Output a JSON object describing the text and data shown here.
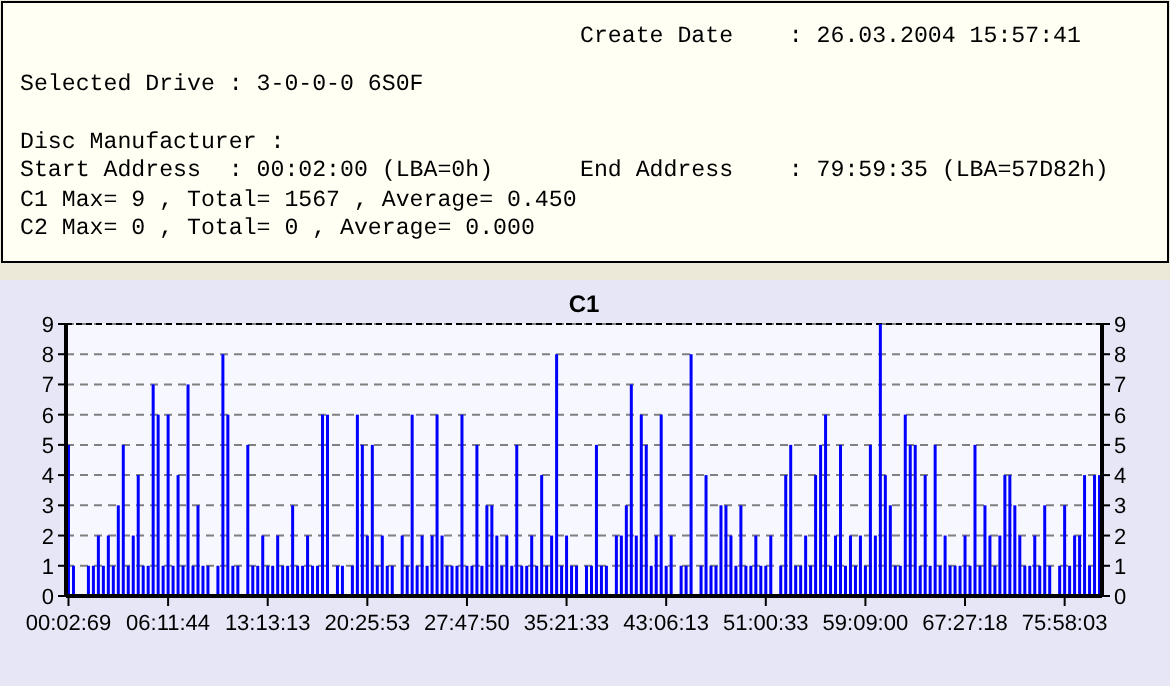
{
  "chart_data": [
    {
      "type": "other",
      "annotations": [
        "Create Date    : 26.03.2004 15:57:41",
        "Selected Drive : 3-0-0-0 6S0F",
        "Disc Manufacturer :",
        "Start Address  : 00:02:00 (LBA=0h)",
        "End Address    : 79:59:35 (LBA=57D82h)",
        "C1 Max= 9 , Total= 1567 , Average= 0.450",
        "C2 Max= 0 , Total= 0 , Average= 0.000"
      ]
    },
    {
      "type": "bar",
      "title": "C1",
      "color": "#0000ff",
      "grid": "y",
      "ylim": [
        0,
        9
      ],
      "yticks": [
        0,
        1,
        2,
        3,
        4,
        5,
        6,
        7,
        8,
        9
      ],
      "y2lim": [
        0,
        9
      ],
      "y2ticks": [
        0,
        1,
        2,
        3,
        4,
        5,
        6,
        7,
        8,
        9
      ],
      "categories": [
        "00:02:69",
        null,
        null,
        null,
        null,
        null,
        null,
        null,
        null,
        null,
        null,
        null,
        null,
        null,
        null,
        null,
        null,
        null,
        null,
        null,
        "06:11:44",
        null,
        null,
        null,
        null,
        null,
        null,
        null,
        null,
        null,
        null,
        null,
        null,
        null,
        null,
        null,
        null,
        null,
        null,
        null,
        "13:13:13",
        null,
        null,
        null,
        null,
        null,
        null,
        null,
        null,
        null,
        null,
        null,
        null,
        null,
        null,
        null,
        null,
        null,
        null,
        null,
        "20:25:53",
        null,
        null,
        null,
        null,
        null,
        null,
        null,
        null,
        null,
        null,
        null,
        null,
        null,
        null,
        null,
        null,
        null,
        null,
        null,
        "27:47:50",
        null,
        null,
        null,
        null,
        null,
        null,
        null,
        null,
        null,
        null,
        null,
        null,
        null,
        null,
        null,
        null,
        null,
        null,
        null,
        "35:21:33",
        null,
        null,
        null,
        null,
        null,
        null,
        null,
        null,
        null,
        null,
        null,
        null,
        null,
        null,
        null,
        null,
        null,
        null,
        null,
        "43:06:13",
        null,
        null,
        null,
        null,
        null,
        null,
        null,
        null,
        null,
        null,
        null,
        null,
        null,
        null,
        null,
        null,
        null,
        null,
        null,
        "51:00:33",
        null,
        null,
        null,
        null,
        null,
        null,
        null,
        null,
        null,
        null,
        null,
        null,
        null,
        null,
        null,
        null,
        null,
        null,
        null,
        "59:09:00",
        null,
        null,
        null,
        null,
        null,
        null,
        null,
        null,
        null,
        null,
        null,
        null,
        null,
        null,
        null,
        null,
        null,
        null,
        null,
        "67:27:18",
        null,
        null,
        null,
        null,
        null,
        null,
        null,
        null,
        null,
        null,
        null,
        null,
        null,
        null,
        null,
        null,
        null,
        null,
        null,
        "75:58:03",
        null,
        null,
        null,
        null,
        null,
        null,
        null
      ],
      "values": [
        5,
        1,
        0,
        0,
        1,
        1,
        2,
        1,
        2,
        1,
        3,
        5,
        1,
        2,
        4,
        1,
        1,
        7,
        6,
        1,
        6,
        1,
        4,
        1,
        7,
        1,
        3,
        1,
        1,
        0,
        1,
        8,
        6,
        1,
        1,
        0,
        5,
        1,
        1,
        2,
        1,
        1,
        2,
        1,
        1,
        3,
        1,
        1,
        2,
        1,
        1,
        6,
        6,
        0,
        1,
        1,
        0,
        1,
        6,
        5,
        2,
        5,
        1,
        2,
        1,
        1,
        0,
        2,
        1,
        6,
        1,
        2,
        1,
        2,
        6,
        2,
        1,
        1,
        1,
        6,
        1,
        1,
        5,
        1,
        3,
        3,
        2,
        1,
        2,
        1,
        5,
        1,
        1,
        2,
        1,
        4,
        1,
        2,
        8,
        1,
        2,
        1,
        1,
        0,
        1,
        1,
        5,
        1,
        1,
        0,
        2,
        2,
        3,
        7,
        2,
        6,
        5,
        1,
        2,
        6,
        1,
        2,
        0,
        1,
        1,
        8,
        0,
        1,
        4,
        1,
        1,
        3,
        3,
        2,
        1,
        3,
        1,
        1,
        2,
        1,
        1,
        2,
        0,
        1,
        4,
        5,
        1,
        1,
        2,
        1,
        4,
        5,
        6,
        1,
        2,
        5,
        1,
        2,
        1,
        2,
        1,
        5,
        2,
        9,
        4,
        3,
        1,
        1,
        6,
        5,
        5,
        1,
        4,
        1,
        5,
        1,
        2,
        1,
        1,
        1,
        2,
        1,
        5,
        1,
        3,
        2,
        1,
        2,
        4,
        4,
        3,
        2,
        1,
        1,
        2,
        1,
        3,
        1,
        0,
        1,
        3,
        1,
        2,
        2,
        4,
        1,
        4,
        4
      ]
    }
  ]
}
